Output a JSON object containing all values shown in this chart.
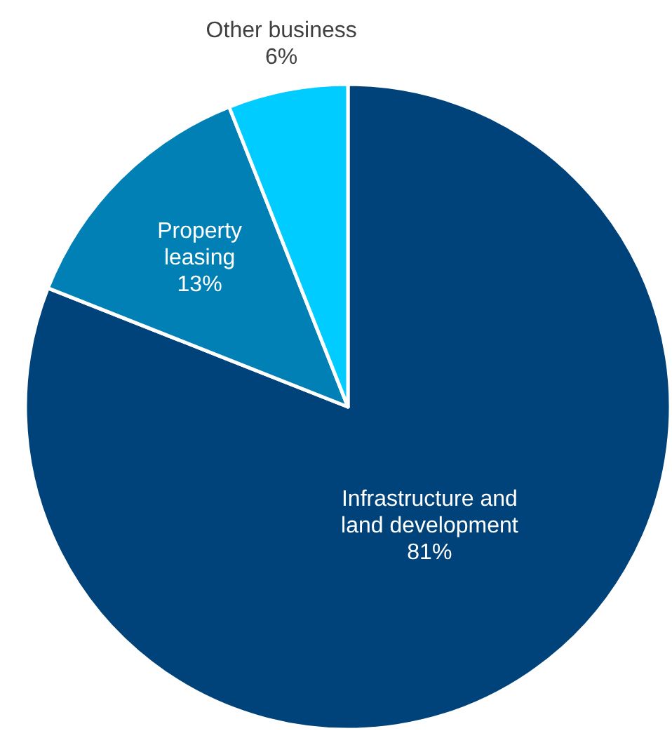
{
  "chart_data": {
    "type": "pie",
    "categories": [
      "Infrastructure and land development",
      "Property leasing",
      "Other business"
    ],
    "values": [
      81,
      13,
      6
    ],
    "colors": [
      "#00427a",
      "#0080b4",
      "#00ccff"
    ],
    "value_labels": [
      "81%",
      "13%",
      "6%"
    ]
  }
}
